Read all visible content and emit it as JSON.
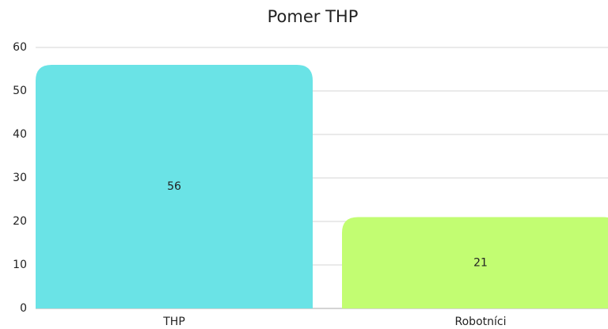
{
  "chart_data": {
    "type": "bar",
    "title": "Pomer THP",
    "categories": [
      "THP",
      "Robotníci"
    ],
    "values": [
      56,
      21
    ],
    "colors": [
      "#6ae3e6",
      "#c2fd72"
    ],
    "ylim": [
      0,
      60
    ],
    "yticks": [
      0,
      10,
      20,
      30,
      40,
      50,
      60
    ],
    "grid": true
  }
}
